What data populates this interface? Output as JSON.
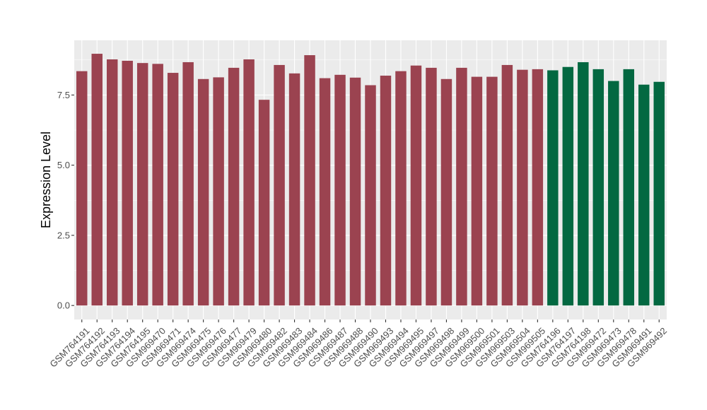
{
  "chart_data": {
    "type": "bar",
    "title": "",
    "xlabel": "",
    "ylabel": "Expression Level",
    "ylim": [
      -0.5,
      9.45
    ],
    "yticks": [
      0.0,
      2.5,
      5.0,
      7.5
    ],
    "ytick_labels": [
      "0.0",
      "2.5",
      "5.0",
      "7.5"
    ],
    "grid": true,
    "legend": "none",
    "colors": {
      "group_1": "#9b4350",
      "group_2": "#036841",
      "panel_bg": "#ebebeb",
      "grid": "#ffffff"
    },
    "categories": [
      "GSM764191",
      "GSM764192",
      "GSM764193",
      "GSM764194",
      "GSM764195",
      "GSM969470",
      "GSM969471",
      "GSM969474",
      "GSM969475",
      "GSM969476",
      "GSM969477",
      "GSM969479",
      "GSM969480",
      "GSM969482",
      "GSM969483",
      "GSM969484",
      "GSM969486",
      "GSM969487",
      "GSM969488",
      "GSM969490",
      "GSM969493",
      "GSM969494",
      "GSM969495",
      "GSM969497",
      "GSM969498",
      "GSM969499",
      "GSM969500",
      "GSM969501",
      "GSM969503",
      "GSM969504",
      "GSM969505",
      "GSM764196",
      "GSM764197",
      "GSM764198",
      "GSM969472",
      "GSM969473",
      "GSM969478",
      "GSM969491",
      "GSM969492"
    ],
    "values": [
      8.35,
      8.97,
      8.77,
      8.72,
      8.64,
      8.61,
      8.29,
      8.67,
      8.07,
      8.13,
      8.47,
      8.77,
      7.33,
      8.57,
      8.27,
      8.92,
      8.1,
      8.22,
      8.12,
      7.85,
      8.19,
      8.35,
      8.55,
      8.47,
      8.07,
      8.47,
      8.15,
      8.15,
      8.57,
      8.4,
      8.42,
      8.38,
      8.5,
      8.67,
      8.42,
      8.0,
      8.42,
      7.87,
      7.97
    ],
    "groups": [
      1,
      1,
      1,
      1,
      1,
      1,
      1,
      1,
      1,
      1,
      1,
      1,
      1,
      1,
      1,
      1,
      1,
      1,
      1,
      1,
      1,
      1,
      1,
      1,
      1,
      1,
      1,
      1,
      1,
      1,
      1,
      2,
      2,
      2,
      2,
      2,
      2,
      2,
      2
    ]
  }
}
